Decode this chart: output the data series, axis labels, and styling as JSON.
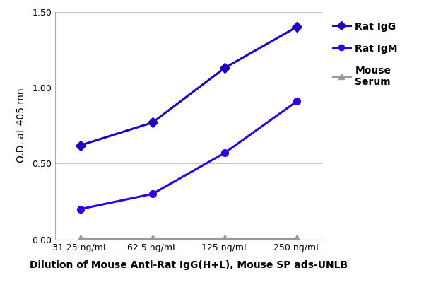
{
  "x_labels": [
    "31.25 ng/mL",
    "62.5 ng/mL",
    "125 ng/mL",
    "250 ng/mL"
  ],
  "x_values": [
    0,
    1,
    2,
    3
  ],
  "rat_igg": [
    0.62,
    0.77,
    1.13,
    1.4
  ],
  "rat_igm": [
    0.2,
    0.3,
    0.57,
    0.91
  ],
  "mouse_serum": [
    0.01,
    0.01,
    0.01,
    0.01
  ],
  "rat_igg_color": "#2200bb",
  "rat_igm_color": "#3300dd",
  "mouse_serum_color": "#999999",
  "rat_igg_label": "Rat IgG",
  "rat_igm_label": "Rat IgM",
  "mouse_serum_label": "Mouse\nSerum",
  "ylabel": "O.D. at 405 mn",
  "xlabel": "Dilution of Mouse Anti-Rat IgG(H+L), Mouse SP ads-UNLB",
  "ylim": [
    0.0,
    1.5
  ],
  "yticks": [
    0.0,
    0.5,
    1.0,
    1.5
  ],
  "axis_label_fontsize": 10,
  "tick_fontsize": 9,
  "legend_fontsize": 10,
  "line_width": 2.2,
  "marker_size": 7
}
